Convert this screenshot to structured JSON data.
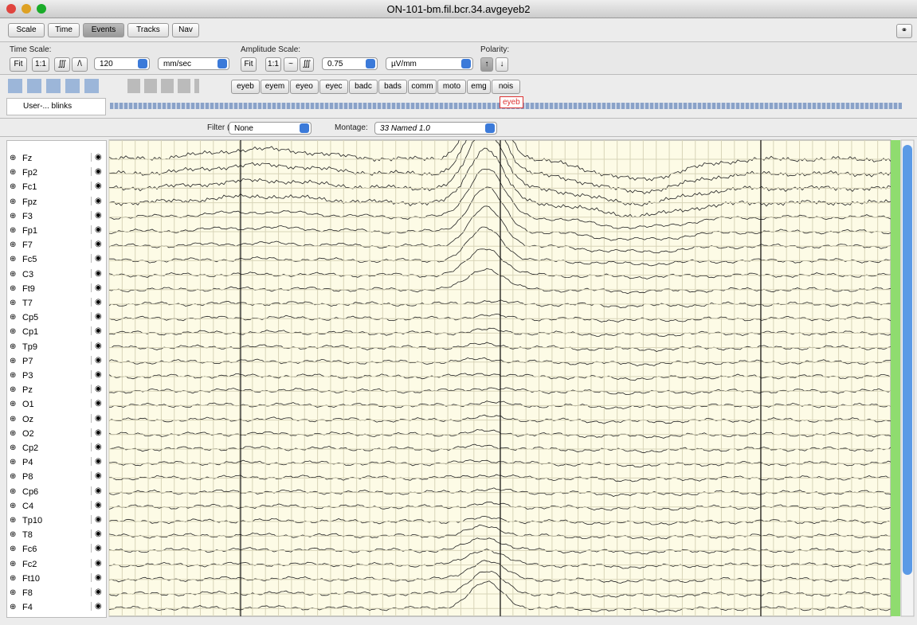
{
  "window": {
    "title": "ON-101-bm.fil.bcr.34.avgeyeb2"
  },
  "tabs": [
    "Scale",
    "Time",
    "Events",
    "Tracks",
    "Nav"
  ],
  "time_scale": {
    "label": "Time Scale:",
    "fit": "Fit",
    "ratio": "1:1",
    "value": "120",
    "unit": "mm/sec"
  },
  "amplitude_scale": {
    "label": "Amplitude Scale:",
    "fit": "Fit",
    "ratio": "1:1",
    "value": "0.75",
    "unit": "µV/mm"
  },
  "polarity": {
    "label": "Polarity:"
  },
  "event_types": [
    "eyeb",
    "eyem",
    "eyeo",
    "eyec",
    "badc",
    "bads",
    "comm",
    "moto",
    "emg",
    "nois"
  ],
  "event_track": {
    "name": "User-... blinks",
    "marker": "eyeb"
  },
  "filter": {
    "label": "Filter (IIR):",
    "value": "None"
  },
  "montage": {
    "label": "Montage:",
    "value": "33 Named 1.0"
  },
  "channels": [
    "Fz",
    "Fp2",
    "Fc1",
    "Fpz",
    "F3",
    "Fp1",
    "F7",
    "Fc5",
    "C3",
    "Ft9",
    "T7",
    "Cp5",
    "Cp1",
    "Tp9",
    "P7",
    "P3",
    "Pz",
    "O1",
    "Oz",
    "O2",
    "Cp2",
    "P4",
    "P8",
    "Cp6",
    "C4",
    "Tp10",
    "T8",
    "Fc6",
    "Fc2",
    "Ft10",
    "F8",
    "F4"
  ]
}
